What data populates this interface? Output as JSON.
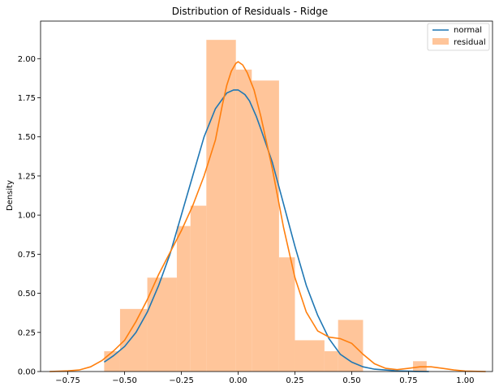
{
  "chart_data": {
    "type": "bar",
    "title": "Distribution of Residuals - Ridge",
    "xlabel": "",
    "ylabel": "Density",
    "xlim": [
      -0.87,
      1.12
    ],
    "ylim": [
      0,
      2.24
    ],
    "grid": false,
    "legend_position": "top-right",
    "x_ticks": [
      -0.75,
      -0.5,
      -0.25,
      0.0,
      0.25,
      0.5,
      0.75,
      1.0
    ],
    "x_tick_labels": [
      "−0.75",
      "−0.50",
      "−0.25",
      "0.00",
      "0.25",
      "0.50",
      "0.75",
      "1.00"
    ],
    "y_ticks": [
      0,
      0.25,
      0.5,
      0.75,
      1.0,
      1.25,
      1.5,
      1.75,
      2.0
    ],
    "y_tick_labels": [
      "0.00",
      "0.25",
      "0.50",
      "0.75",
      "1.00",
      "1.25",
      "1.50",
      "1.75",
      "2.00"
    ],
    "histogram": {
      "name": "residual",
      "color": "#ffbb88",
      "bins": [
        {
          "x0": -0.59,
          "x1": -0.52,
          "value": 0.13
        },
        {
          "x0": -0.52,
          "x1": -0.4,
          "value": 0.4
        },
        {
          "x0": -0.4,
          "x1": -0.27,
          "value": 0.6
        },
        {
          "x0": -0.27,
          "x1": -0.21,
          "value": 0.93
        },
        {
          "x0": -0.21,
          "x1": -0.14,
          "value": 1.06
        },
        {
          "x0": -0.14,
          "x1": -0.01,
          "value": 2.12
        },
        {
          "x0": -0.01,
          "x1": 0.06,
          "value": 1.93
        },
        {
          "x0": 0.06,
          "x1": 0.18,
          "value": 1.86
        },
        {
          "x0": 0.18,
          "x1": 0.25,
          "value": 0.73
        },
        {
          "x0": 0.25,
          "x1": 0.38,
          "value": 0.2
        },
        {
          "x0": 0.38,
          "x1": 0.44,
          "value": 0.13
        },
        {
          "x0": 0.44,
          "x1": 0.55,
          "value": 0.33
        },
        {
          "x0": 0.77,
          "x1": 0.83,
          "value": 0.066
        }
      ]
    },
    "series": [
      {
        "name": "normal",
        "type": "line",
        "color": "#1f77b4",
        "x": [
          -0.59,
          -0.55,
          -0.5,
          -0.45,
          -0.4,
          -0.35,
          -0.3,
          -0.25,
          -0.2,
          -0.15,
          -0.1,
          -0.05,
          -0.02,
          0.0,
          0.03,
          0.05,
          0.08,
          0.1,
          0.15,
          0.2,
          0.25,
          0.3,
          0.35,
          0.4,
          0.45,
          0.5,
          0.55,
          0.6,
          0.7,
          0.78,
          0.84
        ],
        "y": [
          0.06,
          0.1,
          0.16,
          0.25,
          0.38,
          0.55,
          0.75,
          1.0,
          1.25,
          1.5,
          1.68,
          1.78,
          1.8,
          1.8,
          1.77,
          1.73,
          1.63,
          1.55,
          1.34,
          1.07,
          0.8,
          0.55,
          0.36,
          0.21,
          0.11,
          0.06,
          0.03,
          0.015,
          0.004,
          0.001,
          0.0
        ]
      },
      {
        "name": "kde",
        "type": "line",
        "color": "#ff7f0e",
        "x": [
          -0.83,
          -0.75,
          -0.7,
          -0.65,
          -0.6,
          -0.55,
          -0.5,
          -0.45,
          -0.4,
          -0.35,
          -0.3,
          -0.25,
          -0.2,
          -0.15,
          -0.1,
          -0.07,
          -0.05,
          -0.03,
          -0.01,
          0.0,
          0.02,
          0.04,
          0.07,
          0.1,
          0.15,
          0.2,
          0.25,
          0.3,
          0.35,
          0.4,
          0.45,
          0.5,
          0.55,
          0.6,
          0.65,
          0.7,
          0.75,
          0.8,
          0.85,
          0.9,
          0.95,
          1.0,
          1.09
        ],
        "y": [
          0.0,
          0.004,
          0.01,
          0.03,
          0.07,
          0.13,
          0.2,
          0.32,
          0.46,
          0.62,
          0.76,
          0.9,
          1.06,
          1.25,
          1.48,
          1.7,
          1.83,
          1.92,
          1.97,
          1.98,
          1.96,
          1.91,
          1.8,
          1.63,
          1.3,
          0.92,
          0.6,
          0.38,
          0.26,
          0.22,
          0.21,
          0.18,
          0.11,
          0.05,
          0.02,
          0.012,
          0.02,
          0.03,
          0.03,
          0.02,
          0.01,
          0.003,
          0.0
        ]
      }
    ],
    "legend": [
      {
        "label": "normal",
        "kind": "line",
        "color": "#1f77b4"
      },
      {
        "label": "residual",
        "kind": "patch",
        "color": "#ffbb88"
      }
    ]
  }
}
